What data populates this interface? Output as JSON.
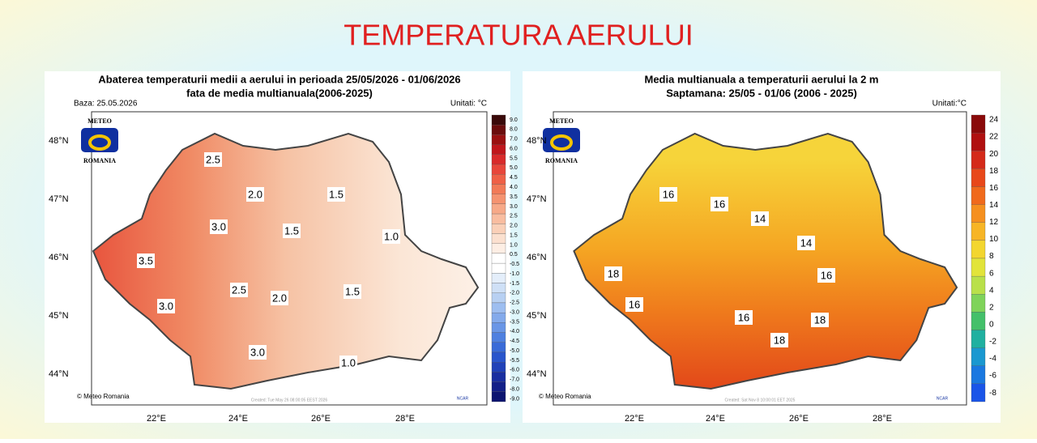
{
  "title": "TEMPERATURA AERULUI",
  "maps": [
    {
      "title_lines": [
        "Abaterea temperaturii medii a aerului in perioada 25/05/2026 - 01/06/2026",
        "fata de media multianuala(2006-2025)"
      ],
      "left_note": "Baza: 25.05.2026",
      "units": "Unitati: °C",
      "logo": [
        "METEO",
        "ROMANIA"
      ],
      "lat_labels": [
        "48°N",
        "47°N",
        "46°N",
        "45°N",
        "44°N"
      ],
      "lon_labels": [
        "22°E",
        "24°E",
        "26°E",
        "28°E"
      ],
      "contour_labels": [
        "2.5",
        "2.0",
        "3.0",
        "3.5",
        "3.0",
        "2.5",
        "2.0",
        "3.0",
        "1.5",
        "1.5",
        "1.0",
        "1.5",
        "1.0"
      ],
      "colorbar_ticks": [
        "9.0",
        "8.0",
        "7.0",
        "6.0",
        "5.5",
        "5.0",
        "4.5",
        "4.0",
        "3.5",
        "3.0",
        "2.5",
        "2.0",
        "1.5",
        "1.0",
        "0.5",
        "-0.5",
        "-1.0",
        "-1.5",
        "-2.0",
        "-2.5",
        "-3.0",
        "-3.5",
        "-4.0",
        "-4.5",
        "-5.0",
        "-5.5",
        "-6.0",
        "-7.0",
        "-8.0",
        "-9.0"
      ],
      "credit": "© Meteo Romania",
      "created": "Created: Tue May 26 08:00:05 EEST 2026",
      "ncar": "NCAR"
    },
    {
      "title_lines": [
        "Media multianuala a temperaturii aerului la 2 m",
        "Saptamana: 25/05 - 01/06 (2006 - 2025)"
      ],
      "left_note": null,
      "units": "Unitati:°C",
      "logo": [
        "METEO",
        "ROMANIA"
      ],
      "lat_labels": [
        "48°N",
        "47°N",
        "46°N",
        "45°N",
        "44°N"
      ],
      "lon_labels": [
        "22°E",
        "24°E",
        "26°E",
        "28°E"
      ],
      "contour_labels": [
        "16",
        "16",
        "14",
        "14",
        "16",
        "18",
        "16",
        "16",
        "18",
        "18"
      ],
      "colorbar_ticks": [
        "24",
        "22",
        "20",
        "18",
        "16",
        "14",
        "12",
        "10",
        "8",
        "6",
        "4",
        "2",
        "0",
        "-2",
        "-4",
        "-6",
        "-8"
      ],
      "credit": "© Meteo Romania",
      "created": "Created: Sat Nov 8 10:00:01 EET 2025",
      "ncar": "NCAR"
    }
  ]
}
